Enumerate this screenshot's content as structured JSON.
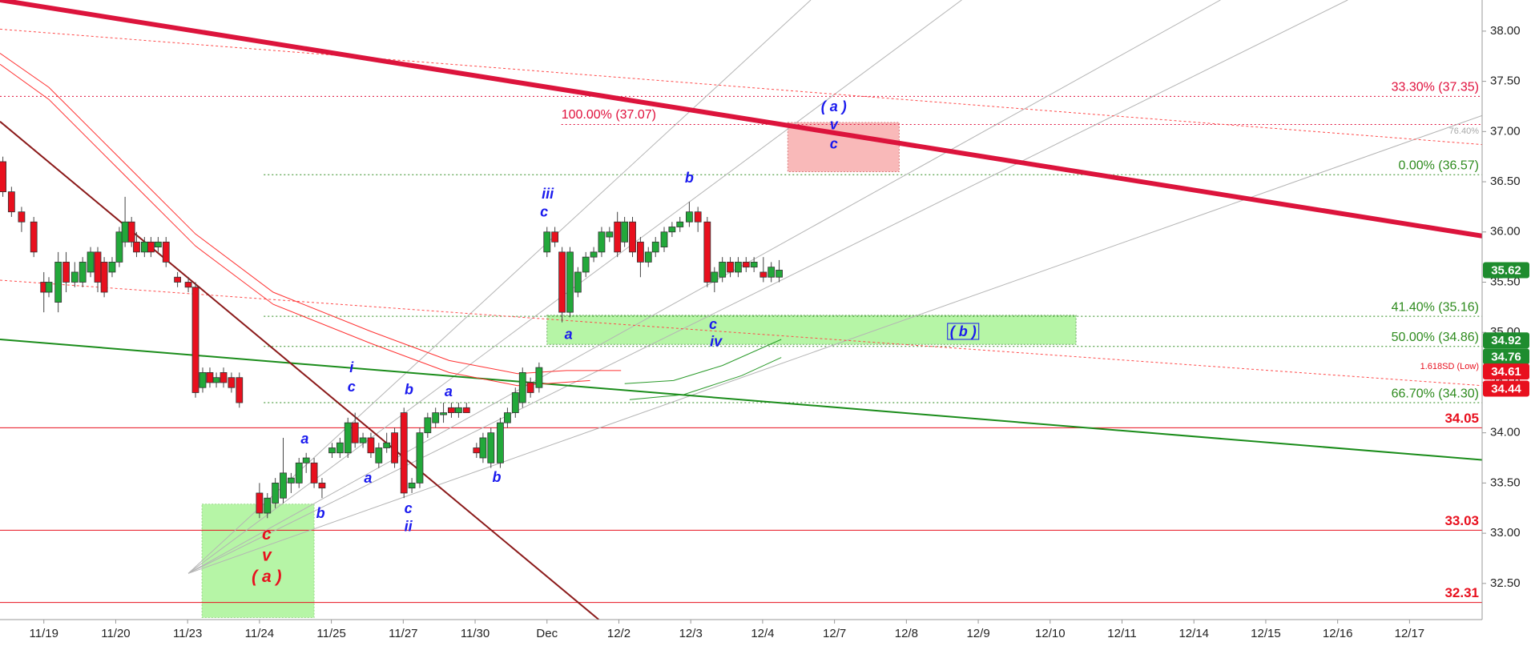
{
  "chart_data": {
    "type": "candlestick",
    "xlim": [
      -0.61,
      20.01
    ],
    "ylim": [
      32.14,
      38.31
    ],
    "xticks": [
      {
        "value": 0,
        "label": "11/19"
      },
      {
        "value": 1,
        "label": "11/20"
      },
      {
        "value": 2,
        "label": "11/23"
      },
      {
        "value": 3,
        "label": "11/24"
      },
      {
        "value": 4,
        "label": "11/25"
      },
      {
        "value": 5,
        "label": "11/27"
      },
      {
        "value": 6,
        "label": "11/30"
      },
      {
        "value": 7,
        "label": "Dec"
      },
      {
        "value": 8,
        "label": "12/2"
      },
      {
        "value": 9,
        "label": "12/3"
      },
      {
        "value": 10,
        "label": "12/4"
      },
      {
        "value": 11,
        "label": "12/7"
      },
      {
        "value": 12,
        "label": "12/8"
      },
      {
        "value": 13,
        "label": "12/9"
      },
      {
        "value": 14,
        "label": "12/10"
      },
      {
        "value": 15,
        "label": "12/11"
      },
      {
        "value": 16,
        "label": "12/14"
      },
      {
        "value": 17,
        "label": "12/15"
      },
      {
        "value": 18,
        "label": "12/16"
      },
      {
        "value": 19,
        "label": "12/17"
      }
    ],
    "yticks": [
      {
        "value": 32.5,
        "label": "32.50"
      },
      {
        "value": 33,
        "label": "33.00"
      },
      {
        "value": 33.5,
        "label": "33.50"
      },
      {
        "value": 34,
        "label": "34.00"
      },
      {
        "value": 34.5,
        "label": "34.50"
      },
      {
        "value": 35,
        "label": "35.00"
      },
      {
        "value": 35.5,
        "label": "35.50"
      },
      {
        "value": 36,
        "label": "36.00"
      },
      {
        "value": 36.5,
        "label": "36.50"
      },
      {
        "value": 37,
        "label": "37.00"
      },
      {
        "value": 37.5,
        "label": "37.50"
      },
      {
        "value": 38,
        "label": "38.00"
      }
    ],
    "up_color": "#22a83a",
    "down_color": "#e8101e",
    "candles": [
      [
        -0.57,
        36.7,
        36.75,
        36.35,
        36.4
      ],
      [
        -0.45,
        36.4,
        36.45,
        36.15,
        36.2
      ],
      [
        -0.31,
        36.2,
        36.25,
        36.0,
        36.1
      ],
      [
        -0.14,
        36.1,
        36.15,
        35.75,
        35.8
      ],
      [
        0,
        35.5,
        35.6,
        35.2,
        35.4
      ],
      [
        0.07,
        35.4,
        35.55,
        35.35,
        35.5
      ],
      [
        0.2,
        35.3,
        35.8,
        35.2,
        35.7
      ],
      [
        0.31,
        35.7,
        35.8,
        35.4,
        35.5
      ],
      [
        0.43,
        35.5,
        35.7,
        35.45,
        35.6
      ],
      [
        0.54,
        35.5,
        35.75,
        35.45,
        35.7
      ],
      [
        0.65,
        35.6,
        35.85,
        35.55,
        35.8
      ],
      [
        0.75,
        35.8,
        35.85,
        35.4,
        35.5
      ],
      [
        0.84,
        35.7,
        35.75,
        35.35,
        35.4
      ],
      [
        0.95,
        35.6,
        35.75,
        35.55,
        35.7
      ],
      [
        1.05,
        35.7,
        36.05,
        35.65,
        36.0
      ],
      [
        1.13,
        35.9,
        36.35,
        35.85,
        36.1
      ],
      [
        1.22,
        36.1,
        36.15,
        35.85,
        35.9
      ],
      [
        1.29,
        35.9,
        36.0,
        35.75,
        35.8
      ],
      [
        1.4,
        35.8,
        35.95,
        35.75,
        35.9
      ],
      [
        1.49,
        35.9,
        35.95,
        35.75,
        35.8
      ],
      [
        1.59,
        35.85,
        35.95,
        35.8,
        35.9
      ],
      [
        1.7,
        35.9,
        35.95,
        35.65,
        35.7
      ],
      [
        1.86,
        35.55,
        35.6,
        35.45,
        35.5
      ],
      [
        2.01,
        35.5,
        35.55,
        35.4,
        35.45
      ],
      [
        2.11,
        35.45,
        35.5,
        34.35,
        34.4
      ],
      [
        2.21,
        34.45,
        34.65,
        34.4,
        34.6
      ],
      [
        2.31,
        34.6,
        34.65,
        34.45,
        34.5
      ],
      [
        2.4,
        34.5,
        34.6,
        34.45,
        34.55
      ],
      [
        2.5,
        34.6,
        34.65,
        34.45,
        34.5
      ],
      [
        2.61,
        34.55,
        34.6,
        34.4,
        34.45
      ],
      [
        2.72,
        34.55,
        34.6,
        34.25,
        34.3
      ],
      [
        3.0,
        33.4,
        33.5,
        33.15,
        33.2
      ],
      [
        3.11,
        33.2,
        33.4,
        33.15,
        33.35
      ],
      [
        3.22,
        33.3,
        33.55,
        33.25,
        33.5
      ],
      [
        3.33,
        33.35,
        33.95,
        33.3,
        33.6
      ],
      [
        3.44,
        33.5,
        33.6,
        33.4,
        33.55
      ],
      [
        3.55,
        33.5,
        33.75,
        33.45,
        33.7
      ],
      [
        3.65,
        33.7,
        33.8,
        33.6,
        33.75
      ],
      [
        3.76,
        33.7,
        33.75,
        33.45,
        33.5
      ],
      [
        3.87,
        33.5,
        33.55,
        33.35,
        33.45
      ],
      [
        4.01,
        33.8,
        33.9,
        33.75,
        33.85
      ],
      [
        4.12,
        33.8,
        33.95,
        33.75,
        33.9
      ],
      [
        4.23,
        33.8,
        34.15,
        33.75,
        34.1
      ],
      [
        4.33,
        34.1,
        34.2,
        33.85,
        33.9
      ],
      [
        4.44,
        33.9,
        34.0,
        33.85,
        33.95
      ],
      [
        4.55,
        33.95,
        34.0,
        33.75,
        33.8
      ],
      [
        4.66,
        33.7,
        33.9,
        33.65,
        33.85
      ],
      [
        4.77,
        33.85,
        34.0,
        33.8,
        33.9
      ],
      [
        4.88,
        34.0,
        34.05,
        33.65,
        33.7
      ],
      [
        5.01,
        34.2,
        34.25,
        33.35,
        33.4
      ],
      [
        5.12,
        33.45,
        33.55,
        33.4,
        33.5
      ],
      [
        5.23,
        33.5,
        34.05,
        33.45,
        34.0
      ],
      [
        5.34,
        34.0,
        34.2,
        33.95,
        34.15
      ],
      [
        5.45,
        34.1,
        34.25,
        34.05,
        34.2
      ],
      [
        5.56,
        34.18,
        34.3,
        34.1,
        34.2
      ],
      [
        5.67,
        34.25,
        34.3,
        34.15,
        34.2
      ],
      [
        5.77,
        34.2,
        34.3,
        34.15,
        34.25
      ],
      [
        5.88,
        34.25,
        34.3,
        34.2,
        34.2
      ],
      [
        6.02,
        33.85,
        33.9,
        33.75,
        33.8
      ],
      [
        6.11,
        33.75,
        34.0,
        33.7,
        33.95
      ],
      [
        6.22,
        33.7,
        34.05,
        33.65,
        34.0
      ],
      [
        6.35,
        33.7,
        34.15,
        33.65,
        34.1
      ],
      [
        6.45,
        34.1,
        34.25,
        34.05,
        34.2
      ],
      [
        6.56,
        34.2,
        34.45,
        34.15,
        34.4
      ],
      [
        6.66,
        34.3,
        34.65,
        34.25,
        34.6
      ],
      [
        6.77,
        34.5,
        34.55,
        34.35,
        34.4
      ],
      [
        6.89,
        34.45,
        34.7,
        34.4,
        34.65
      ],
      [
        7.0,
        35.8,
        36.05,
        35.75,
        36.0
      ],
      [
        7.11,
        36.0,
        36.05,
        35.85,
        35.9
      ],
      [
        7.21,
        35.8,
        35.85,
        35.1,
        35.2
      ],
      [
        7.32,
        35.2,
        35.85,
        35.15,
        35.8
      ],
      [
        7.43,
        35.4,
        35.65,
        35.35,
        35.6
      ],
      [
        7.54,
        35.6,
        35.8,
        35.55,
        35.75
      ],
      [
        7.65,
        35.75,
        35.85,
        35.7,
        35.8
      ],
      [
        7.76,
        35.8,
        36.05,
        35.75,
        36.0
      ],
      [
        7.87,
        35.95,
        36.05,
        35.9,
        36.0
      ],
      [
        7.98,
        36.1,
        36.2,
        35.75,
        35.8
      ],
      [
        8.08,
        35.9,
        36.15,
        35.85,
        36.1
      ],
      [
        8.19,
        36.1,
        36.15,
        35.75,
        35.8
      ],
      [
        8.3,
        35.9,
        35.95,
        35.55,
        35.7
      ],
      [
        8.41,
        35.7,
        35.85,
        35.65,
        35.8
      ],
      [
        8.51,
        35.8,
        35.95,
        35.75,
        35.9
      ],
      [
        8.63,
        35.85,
        36.05,
        35.8,
        36.0
      ],
      [
        8.74,
        36.0,
        36.1,
        35.95,
        36.05
      ],
      [
        8.85,
        36.05,
        36.15,
        36.0,
        36.1
      ],
      [
        8.98,
        36.1,
        36.3,
        36.05,
        36.2
      ],
      [
        9.1,
        36.2,
        36.25,
        36.0,
        36.1
      ],
      [
        9.23,
        36.1,
        36.15,
        35.45,
        35.5
      ],
      [
        9.33,
        35.5,
        35.65,
        35.4,
        35.6
      ],
      [
        9.44,
        35.55,
        35.75,
        35.5,
        35.7
      ],
      [
        9.55,
        35.7,
        35.75,
        35.55,
        35.6
      ],
      [
        9.66,
        35.6,
        35.75,
        35.55,
        35.7
      ],
      [
        9.77,
        35.7,
        35.75,
        35.6,
        35.65
      ],
      [
        9.88,
        35.65,
        35.75,
        35.6,
        35.7
      ],
      [
        10.01,
        35.6,
        35.75,
        35.5,
        35.55
      ],
      [
        10.12,
        35.55,
        35.7,
        35.5,
        35.65
      ],
      [
        10.23,
        35.55,
        35.72,
        35.5,
        35.62
      ]
    ],
    "zones": [
      {
        "x": [
          2.2,
          3.76
        ],
        "y": [
          33.29,
          32.16
        ],
        "color": "#b6f5a6",
        "border": "#9bd98c"
      },
      {
        "x": [
          7.0,
          14.36
        ],
        "y": [
          35.17,
          34.88
        ],
        "color": "#b6f5a6",
        "border": "#6aa860"
      },
      {
        "x": [
          10.35,
          11.9
        ],
        "y": [
          37.09,
          36.6
        ],
        "color": "#f9b9b9",
        "border": "#d98080"
      }
    ],
    "hlines": [
      {
        "value": 34.05,
        "color": "#e8101e"
      },
      {
        "value": 33.03,
        "color": "#e8101e"
      },
      {
        "value": 32.31,
        "color": "#e8101e"
      }
    ],
    "levels": [
      {
        "label": "33.30% (37.35)",
        "value": 37.35,
        "from": -0.61,
        "color": "#e0103c",
        "label_at": "end"
      },
      {
        "label": "100.00% (37.07)",
        "value": 37.07,
        "from": 7.2,
        "color": "#e0103c",
        "label_at": "start"
      },
      {
        "label": "0.00% (36.57)",
        "value": 36.57,
        "from": 3.06,
        "color": "#2e8b1e",
        "label_at": "end"
      },
      {
        "label": "41.40% (35.16)",
        "value": 35.16,
        "from": 3.06,
        "color": "#2e8b1e",
        "label_at": "end"
      },
      {
        "label": "50.00% (34.86)",
        "value": 34.86,
        "from": 3.06,
        "color": "#2e8b1e",
        "label_at": "end"
      },
      {
        "label": "66.70% (34.30)",
        "value": 34.3,
        "from": 3.06,
        "color": "#2e8b1e",
        "label_at": "end"
      }
    ],
    "lines": [
      {
        "x": [
          2.01,
          10.67
        ],
        "y": [
          32.6,
          38.31
        ],
        "color": "#b4b4b4",
        "width": 1,
        "dash": false
      },
      {
        "x": [
          2.01,
          12.77
        ],
        "y": [
          32.6,
          38.31
        ],
        "color": "#b4b4b4",
        "width": 1,
        "dash": false
      },
      {
        "x": [
          2.01,
          16.37
        ],
        "y": [
          32.6,
          38.31
        ],
        "color": "#b4b4b4",
        "width": 1,
        "dash": false
      },
      {
        "x": [
          2.01,
          18.14
        ],
        "y": [
          32.6,
          38.31
        ],
        "color": "#b4b4b4",
        "width": 1,
        "dash": false
      },
      {
        "x": [
          2.01,
          20.01
        ],
        "y": [
          32.6,
          37.16
        ],
        "color": "#b4b4b4",
        "width": 1,
        "dash": false
      },
      {
        "x": [
          -0.61,
          20.01
        ],
        "y": [
          38.02,
          36.87
        ],
        "color": "#ff4a4a",
        "width": 1,
        "dash": true
      },
      {
        "x": [
          -0.61,
          20.01
        ],
        "y": [
          35.52,
          34.47
        ],
        "color": "#ff4a4a",
        "width": 1,
        "dash": true
      },
      {
        "x": [
          -0.61,
          20.01
        ],
        "y": [
          34.93,
          33.73
        ],
        "color": "#1a8c1a",
        "width": 2,
        "dash": false
      },
      {
        "x": [
          -0.61,
          7.72
        ],
        "y": [
          37.1,
          32.14
        ],
        "color": "#8b1a1a",
        "width": 2,
        "dash": false
      },
      {
        "x": [
          -0.61,
          20.01
        ],
        "y": [
          38.31,
          35.96
        ],
        "color": "#dc143c",
        "width": 6,
        "dash": false
      },
      {
        "x": [
          -0.61,
          0.07,
          1.02,
          2.11,
          3.19,
          4.55,
          5.64,
          6.59,
          7.27,
          8.03
        ],
        "y": [
          37.78,
          37.44,
          36.76,
          35.98,
          35.4,
          35.01,
          34.72,
          34.59,
          34.62,
          34.62
        ],
        "color": "#ff3030",
        "width": 1,
        "dash": false
      },
      {
        "x": [
          -0.61,
          0.07,
          1.02,
          2.11,
          3.19,
          4.55,
          5.64,
          6.59,
          7.6
        ],
        "y": [
          37.67,
          37.32,
          36.64,
          35.86,
          35.28,
          34.89,
          34.6,
          34.47,
          34.52
        ],
        "color": "#ff3030",
        "width": 1,
        "dash": false
      },
      {
        "x": [
          8.08,
          8.76,
          9.44,
          10.26
        ],
        "y": [
          34.49,
          34.52,
          34.67,
          34.93
        ],
        "color": "#2a9a2a",
        "width": 1,
        "dash": false
      },
      {
        "x": [
          8.15,
          8.9,
          9.71,
          10.26
        ],
        "y": [
          34.33,
          34.38,
          34.57,
          34.75
        ],
        "color": "#2a9a2a",
        "width": 1,
        "dash": false
      }
    ],
    "annotations": [
      {
        "text": "( a )",
        "x": 10.99,
        "y": 37.24,
        "color": "#1a1aee"
      },
      {
        "text": "v",
        "x": 10.99,
        "y": 37.06,
        "color": "#1a1aee"
      },
      {
        "text": "c",
        "x": 10.99,
        "y": 36.87,
        "color": "#1a1aee"
      },
      {
        "text": "iii",
        "x": 7.01,
        "y": 36.37,
        "color": "#1a1aee"
      },
      {
        "text": "c",
        "x": 6.96,
        "y": 36.19,
        "color": "#1a1aee"
      },
      {
        "text": "b",
        "x": 8.98,
        "y": 36.53,
        "color": "#1a1aee"
      },
      {
        "text": "a",
        "x": 7.3,
        "y": 34.97,
        "color": "#1a1aee"
      },
      {
        "text": "c",
        "x": 9.31,
        "y": 35.07,
        "color": "#1a1aee"
      },
      {
        "text": "iv",
        "x": 9.35,
        "y": 34.9,
        "color": "#1a1aee"
      },
      {
        "text": "( b )",
        "x": 12.79,
        "y": 35.0,
        "color": "#1a1aee",
        "box": true
      },
      {
        "text": "i",
        "x": 4.28,
        "y": 34.64,
        "color": "#1a1aee"
      },
      {
        "text": "c",
        "x": 4.28,
        "y": 34.45,
        "color": "#1a1aee"
      },
      {
        "text": "b",
        "x": 5.08,
        "y": 34.42,
        "color": "#1a1aee"
      },
      {
        "text": "a",
        "x": 5.63,
        "y": 34.4,
        "color": "#1a1aee"
      },
      {
        "text": "a",
        "x": 3.63,
        "y": 33.93,
        "color": "#1a1aee"
      },
      {
        "text": "a",
        "x": 4.51,
        "y": 33.54,
        "color": "#1a1aee"
      },
      {
        "text": "b",
        "x": 3.85,
        "y": 33.19,
        "color": "#1a1aee"
      },
      {
        "text": "b",
        "x": 6.3,
        "y": 33.55,
        "color": "#1a1aee"
      },
      {
        "text": "c",
        "x": 5.07,
        "y": 33.24,
        "color": "#1a1aee"
      },
      {
        "text": "ii",
        "x": 5.07,
        "y": 33.06,
        "color": "#1a1aee"
      },
      {
        "text": "c",
        "x": 3.1,
        "y": 32.98,
        "color": "#e8101e",
        "big": true
      },
      {
        "text": "v",
        "x": 3.1,
        "y": 32.77,
        "color": "#e8101e",
        "big": true
      },
      {
        "text": "( a )",
        "x": 3.1,
        "y": 32.56,
        "color": "#e8101e",
        "big": true
      }
    ],
    "small_labels": [
      {
        "text": "76.40%",
        "y": 37.0,
        "color": "#a8a8a8"
      },
      {
        "text": "1.618SD (Low)",
        "y": 34.66,
        "color": "#e8101e"
      }
    ],
    "price_tags": [
      {
        "value": 35.62,
        "color": "#1e8c2e"
      },
      {
        "value": 34.92,
        "color": "#1e8c2e"
      },
      {
        "value": 34.76,
        "color": "#1e8c2e"
      },
      {
        "value": 34.61,
        "color": "#e8101e"
      },
      {
        "value": 34.44,
        "color": "#e8101e"
      }
    ]
  }
}
